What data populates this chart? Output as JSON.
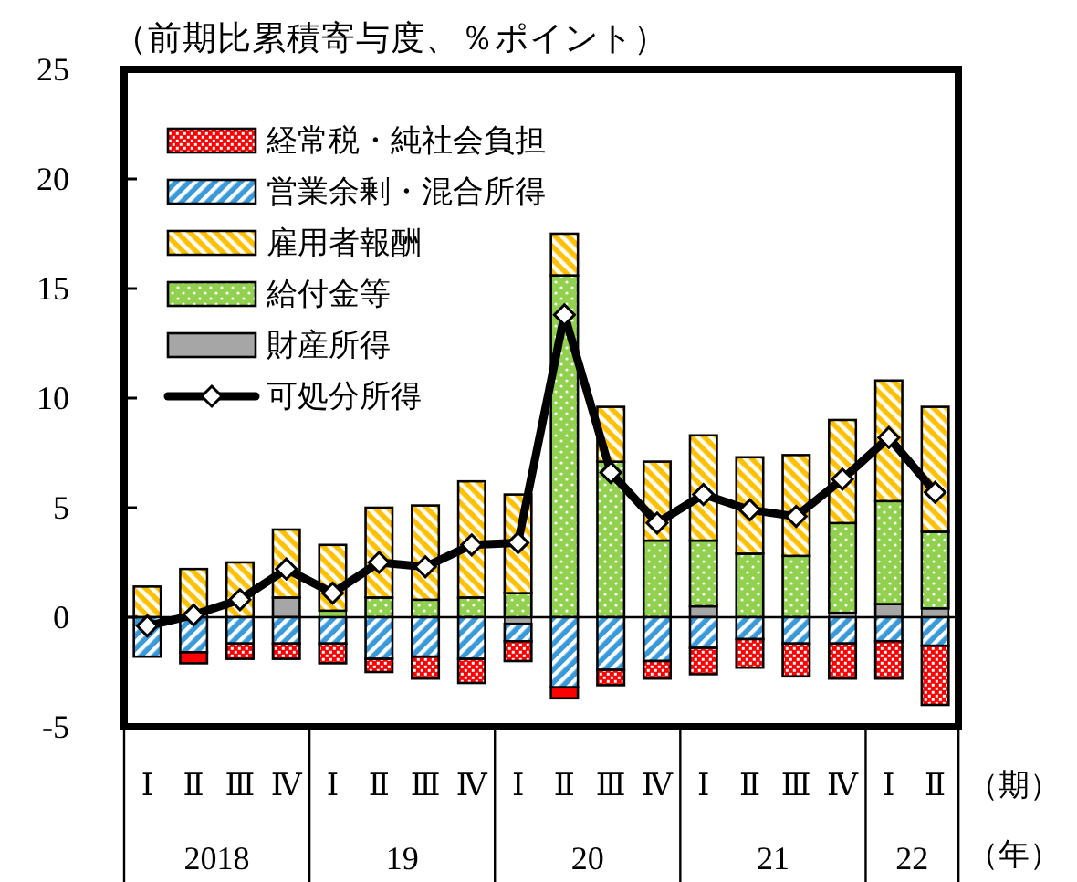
{
  "chart_data": {
    "type": "bar",
    "stacked": true,
    "legend": "top left",
    "ylabel": "（前期比累積寄与度、％ポイント）",
    "xlabel": "（期）",
    "annotations": [
      "（年）",
      "2018",
      "19",
      "20",
      "21",
      "22"
    ],
    "categories": [
      "Ⅰ",
      "Ⅱ",
      "Ⅲ",
      "Ⅳ",
      "Ⅰ",
      "Ⅱ",
      "Ⅲ",
      "Ⅳ",
      "Ⅰ",
      "Ⅱ",
      "Ⅲ",
      "Ⅳ",
      "Ⅰ",
      "Ⅱ",
      "Ⅲ",
      "Ⅳ",
      "Ⅰ",
      "Ⅱ"
    ],
    "ylim": [
      -5,
      25
    ],
    "yticks": [
      -5,
      0,
      5,
      10,
      15,
      20,
      25
    ],
    "series": [
      {
        "name": "財産所得",
        "color": "#a6a6a6",
        "values": [
          0,
          0,
          0,
          0.9,
          0,
          0,
          0,
          0,
          -0.3,
          0,
          0,
          0,
          0.5,
          0,
          0,
          0.2,
          0.6,
          0.4
        ]
      },
      {
        "name": "給付金等",
        "color": "#92d050",
        "values": [
          0,
          0,
          0,
          0,
          0.3,
          0.9,
          0.8,
          0.9,
          1.1,
          15.6,
          7.1,
          3.5,
          3.0,
          2.9,
          2.8,
          4.1,
          4.7,
          3.5
        ]
      },
      {
        "name": "雇用者報酬",
        "color": "#ffc000",
        "values": [
          1.4,
          2.2,
          2.5,
          3.1,
          3.0,
          4.1,
          4.3,
          5.3,
          4.5,
          1.9,
          2.5,
          3.6,
          4.8,
          4.4,
          4.6,
          4.7,
          5.5,
          5.7
        ]
      },
      {
        "name": "営業余剰・混合所得",
        "color": "#3a9ad9",
        "values": [
          -1.8,
          -1.6,
          -1.2,
          -1.2,
          -1.2,
          -1.9,
          -1.8,
          -1.9,
          -0.8,
          -3.2,
          -2.4,
          -2.0,
          -1.4,
          -1.0,
          -1.2,
          -1.2,
          -1.1,
          -1.3
        ]
      },
      {
        "name": "経常税・純社会負担",
        "color": "#ff0000",
        "values": [
          0,
          -0.5,
          -0.7,
          -0.7,
          -0.9,
          -0.6,
          -1.0,
          -1.1,
          -0.9,
          -0.5,
          -0.7,
          -0.8,
          -1.2,
          -1.3,
          -1.5,
          -1.6,
          -1.7,
          -2.7
        ]
      },
      {
        "name": "可処分所得",
        "type": "line",
        "marker": "diamond",
        "color": "#000000",
        "values": [
          -0.4,
          0.1,
          0.8,
          2.2,
          1.1,
          2.5,
          2.3,
          3.3,
          3.4,
          13.8,
          6.6,
          4.3,
          5.6,
          4.9,
          4.6,
          6.3,
          8.2,
          5.7
        ]
      }
    ]
  }
}
